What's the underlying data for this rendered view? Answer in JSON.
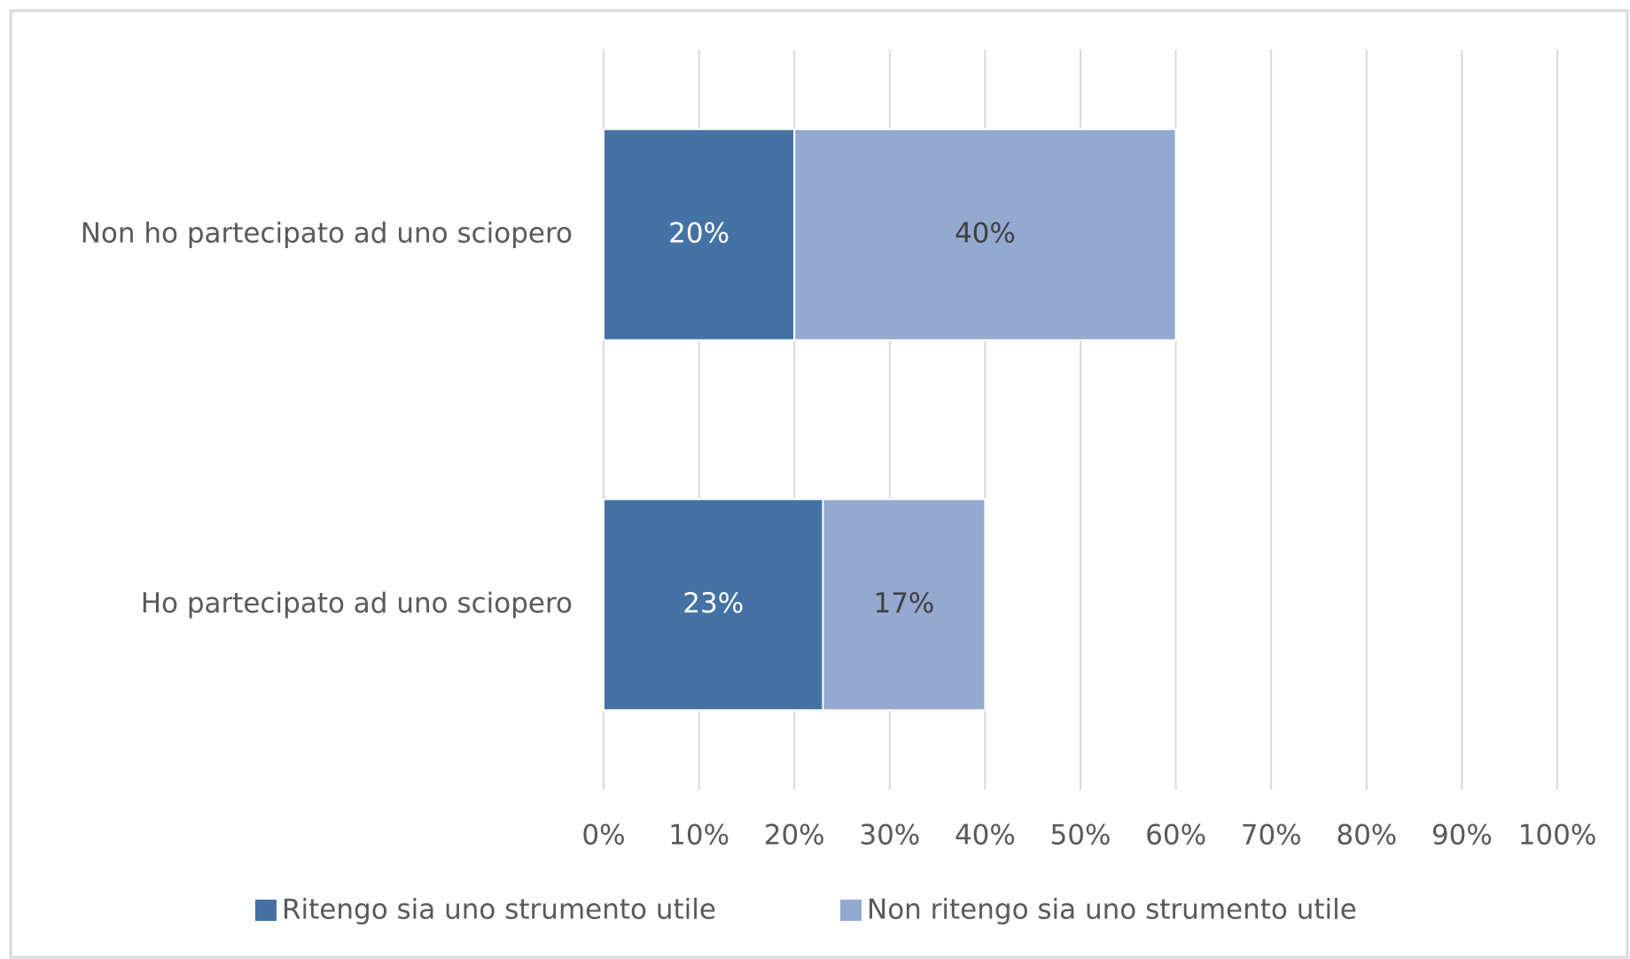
{
  "chart_data": {
    "type": "stacked_bar_horizontal",
    "categories": [
      "Non ho partecipato ad uno sciopero",
      "Ho partecipato ad uno sciopero"
    ],
    "series": [
      {
        "name": "Ritengo sia uno strumento utile",
        "color": "#4472a5",
        "values": [
          20,
          23
        ],
        "value_labels": [
          "20%",
          "23%"
        ]
      },
      {
        "name": "Non ritengo sia uno strumento utile",
        "color": "#94a9d0",
        "values": [
          40,
          17
        ],
        "value_labels": [
          "40%",
          "17%"
        ]
      }
    ],
    "xlim": [
      0,
      100
    ],
    "xticks": [
      {
        "value": 0,
        "label": "0%"
      },
      {
        "value": 10,
        "label": "10%"
      },
      {
        "value": 20,
        "label": "20%"
      },
      {
        "value": 30,
        "label": "30%"
      },
      {
        "value": 40,
        "label": "40%"
      },
      {
        "value": 50,
        "label": "50%"
      },
      {
        "value": 60,
        "label": "60%"
      },
      {
        "value": 70,
        "label": "70%"
      },
      {
        "value": 80,
        "label": "80%"
      },
      {
        "value": 90,
        "label": "90%"
      },
      {
        "value": 100,
        "label": "100%"
      }
    ],
    "grid": true,
    "legend": "bottom"
  }
}
